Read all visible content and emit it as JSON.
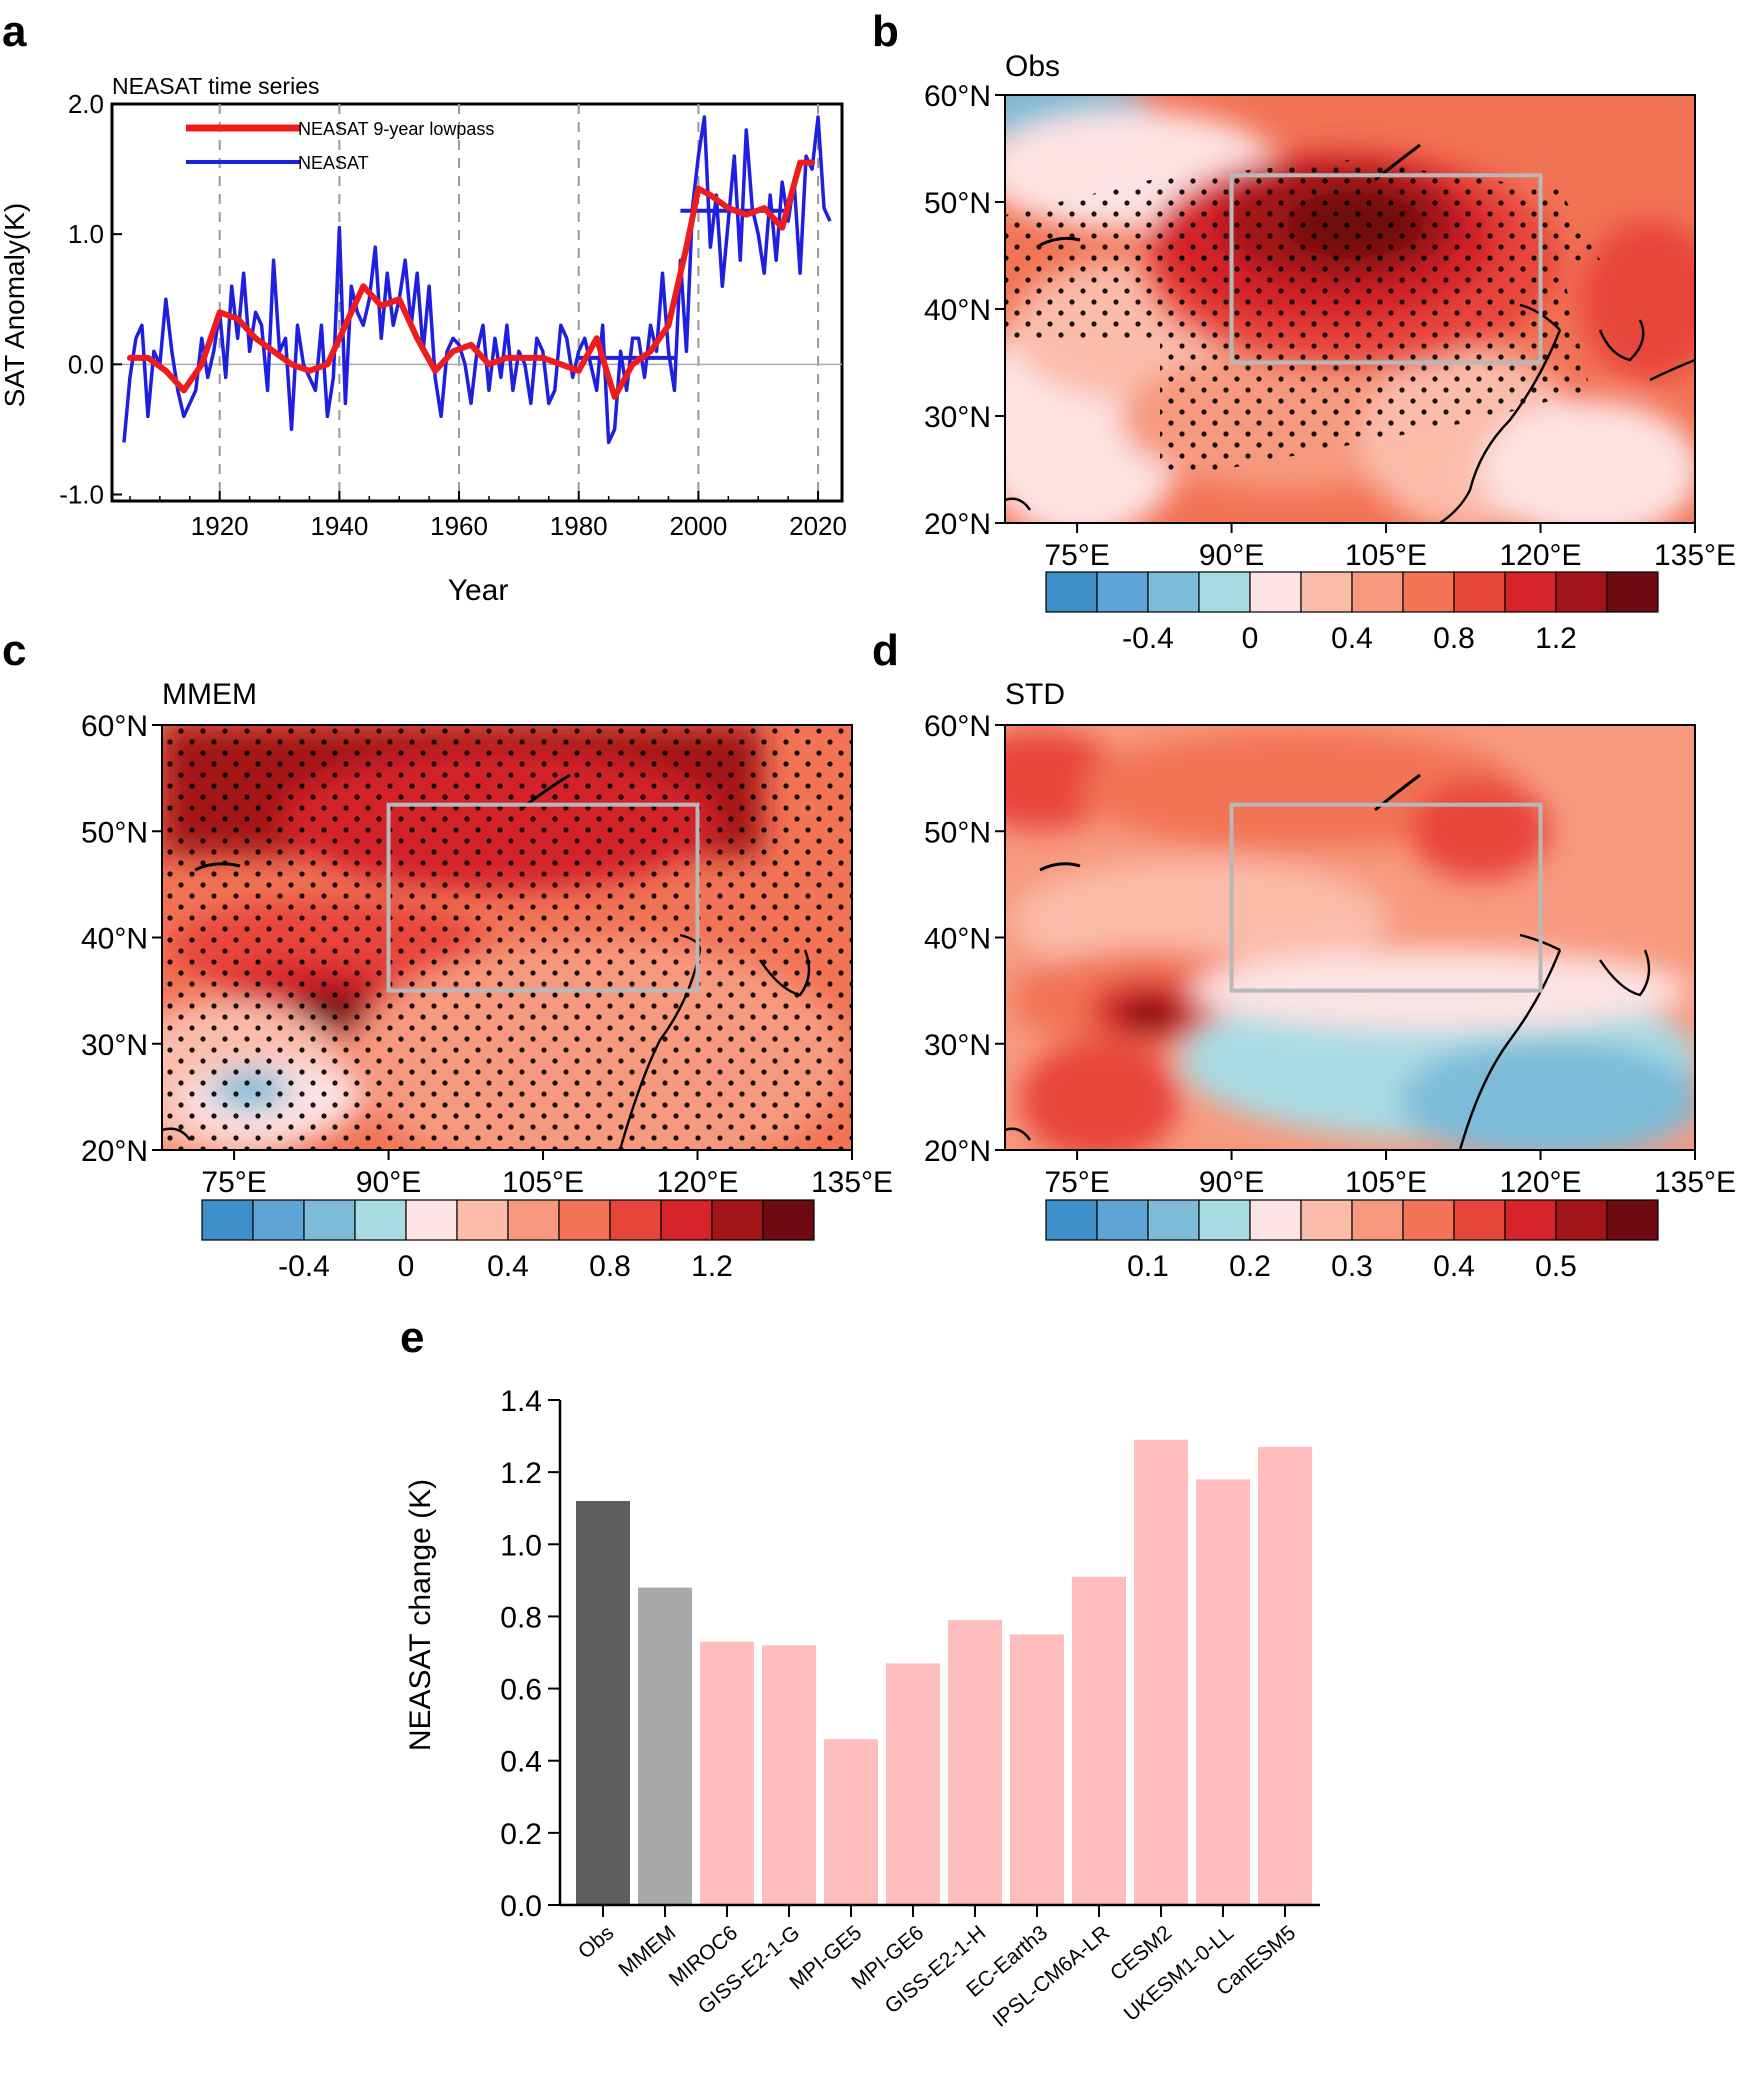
{
  "panel_labels": [
    "a",
    "b",
    "c",
    "d",
    "e"
  ],
  "colors": {
    "neasat_line": "#1f1fe0",
    "lowpass_line": "#ee1c1c",
    "obs_bar": "#5e5e5e",
    "mmem_bar": "#a9a9a9",
    "model_bar": "#ffbdbd",
    "box": "#b8b8b8",
    "div_scale": [
      "#3d8ec9",
      "#5ea4d4",
      "#7cbcd8",
      "#a9dbe3",
      "#fde3e3",
      "#fbbcaa",
      "#f7997e",
      "#f27355",
      "#e8453a",
      "#d42329",
      "#a31419",
      "#6f0a10"
    ]
  },
  "chart_data": [
    {
      "type": "line",
      "panel": "a",
      "title": "NEASAT time series",
      "xlabel": "Year",
      "ylabel": "SAT Anomaly(K)",
      "xlim": [
        1902,
        2024
      ],
      "ylim": [
        -1.05,
        2.0
      ],
      "xticks": [
        "1920",
        "1940",
        "1960",
        "1980",
        "2000",
        "2020"
      ],
      "yticks": [
        "-1.0",
        "0.0",
        "1.0",
        "2.0"
      ],
      "vlines": [
        1920,
        1940,
        1960,
        1980,
        2000,
        2020
      ],
      "series": [
        {
          "name": "NEASAT",
          "x": [
            1904,
            1905,
            1906,
            1907,
            1908,
            1909,
            1910,
            1911,
            1912,
            1913,
            1914,
            1915,
            1916,
            1917,
            1918,
            1919,
            1920,
            1921,
            1922,
            1923,
            1924,
            1925,
            1926,
            1927,
            1928,
            1929,
            1930,
            1931,
            1932,
            1933,
            1934,
            1935,
            1936,
            1937,
            1938,
            1939,
            1940,
            1941,
            1942,
            1943,
            1944,
            1945,
            1946,
            1947,
            1948,
            1949,
            1950,
            1951,
            1952,
            1953,
            1954,
            1955,
            1956,
            1957,
            1958,
            1959,
            1960,
            1961,
            1962,
            1963,
            1964,
            1965,
            1966,
            1967,
            1968,
            1969,
            1970,
            1971,
            1972,
            1973,
            1974,
            1975,
            1976,
            1977,
            1978,
            1979,
            1980,
            1981,
            1982,
            1983,
            1984,
            1985,
            1986,
            1987,
            1988,
            1989,
            1990,
            1991,
            1992,
            1993,
            1994,
            1995,
            1996,
            1997,
            1998,
            1999,
            2000,
            2001,
            2002,
            2003,
            2004,
            2005,
            2006,
            2007,
            2008,
            2009,
            2010,
            2011,
            2012,
            2013,
            2014,
            2015,
            2016,
            2017,
            2018,
            2019,
            2020,
            2021,
            2022
          ],
          "values": [
            -0.6,
            -0.1,
            0.2,
            0.3,
            -0.4,
            0.1,
            0.0,
            0.5,
            0.1,
            -0.2,
            -0.4,
            -0.3,
            -0.2,
            0.2,
            -0.1,
            0.1,
            0.4,
            -0.1,
            0.6,
            0.2,
            0.7,
            0.1,
            0.4,
            0.3,
            -0.2,
            0.8,
            0.1,
            0.2,
            -0.5,
            0.3,
            0.0,
            -0.1,
            -0.2,
            0.3,
            -0.4,
            -0.1,
            1.05,
            -0.3,
            0.6,
            0.4,
            0.3,
            0.5,
            0.9,
            0.2,
            0.7,
            0.3,
            0.5,
            0.8,
            0.3,
            0.7,
            0.1,
            0.6,
            -0.1,
            -0.4,
            0.1,
            0.2,
            0.15,
            0.0,
            -0.3,
            0.1,
            0.3,
            -0.2,
            0.2,
            -0.1,
            0.3,
            -0.2,
            0.1,
            0.0,
            -0.3,
            0.2,
            0.1,
            -0.3,
            -0.2,
            0.3,
            0.2,
            -0.1,
            0.1,
            0.2,
            0.0,
            -0.2,
            0.3,
            -0.6,
            -0.5,
            0.1,
            -0.2,
            0.2,
            0.2,
            -0.1,
            0.3,
            0.1,
            0.7,
            0.1,
            -0.2,
            0.8,
            0.1,
            1.2,
            1.6,
            1.9,
            0.9,
            1.3,
            0.6,
            1.1,
            1.6,
            0.8,
            1.8,
            1.2,
            1.0,
            0.7,
            1.3,
            0.8,
            1.4,
            1.1,
            1.4,
            0.7,
            1.6,
            1.5,
            1.9,
            1.2,
            1.1
          ]
        },
        {
          "name": "NEASAT 9-year lowpass",
          "x": [
            1905,
            1908,
            1911,
            1914,
            1917,
            1920,
            1923,
            1926,
            1929,
            1932,
            1935,
            1938,
            1941,
            1944,
            1947,
            1950,
            1953,
            1956,
            1959,
            1962,
            1965,
            1968,
            1971,
            1974,
            1977,
            1980,
            1983,
            1986,
            1989,
            1992,
            1995,
            1998,
            2000,
            2002,
            2005,
            2008,
            2011,
            2014,
            2017,
            2019
          ],
          "values": [
            0.05,
            0.05,
            -0.05,
            -0.2,
            0.0,
            0.4,
            0.35,
            0.2,
            0.1,
            0.0,
            -0.05,
            0.0,
            0.3,
            0.6,
            0.45,
            0.5,
            0.2,
            -0.05,
            0.1,
            0.15,
            0.0,
            0.05,
            0.05,
            0.05,
            0.0,
            -0.05,
            0.2,
            -0.25,
            0.0,
            0.1,
            0.3,
            0.9,
            1.35,
            1.3,
            1.2,
            1.15,
            1.2,
            1.05,
            1.55,
            1.55
          ]
        },
        {
          "name": "mean segments",
          "segments": [
            {
              "x": [
                1980,
                1996
              ],
              "value": 0.05
            },
            {
              "x": [
                1997,
                2015
              ],
              "value": 1.18
            }
          ]
        }
      ],
      "legend": [
        {
          "label": "NEASAT 9-year lowpass",
          "series": "NEASAT 9-year lowpass"
        },
        {
          "label": "NEASAT",
          "series": "NEASAT"
        }
      ],
      "legend_position": "top-left"
    },
    {
      "type": "heatmap",
      "panel": "b",
      "title": "Obs",
      "xticks": [
        "75°E",
        "90°E",
        "105°E",
        "120°E",
        "135°E"
      ],
      "yticks": [
        "60°N",
        "50°N",
        "40°N",
        "30°N",
        "20°N"
      ],
      "lon_range": [
        68,
        135
      ],
      "lat_range": [
        20,
        60
      ],
      "box": {
        "lon": [
          90,
          120
        ],
        "lat": [
          35,
          52.5
        ]
      },
      "colorbar_labels": [
        "-0.4",
        "0",
        "0.4",
        "0.8",
        "1.2"
      ]
    },
    {
      "type": "heatmap",
      "panel": "c",
      "title": "MMEM",
      "xticks": [
        "75°E",
        "90°E",
        "105°E",
        "120°E",
        "135°E"
      ],
      "yticks": [
        "60°N",
        "50°N",
        "40°N",
        "30°N",
        "20°N"
      ],
      "lon_range": [
        68,
        135
      ],
      "lat_range": [
        20,
        60
      ],
      "box": {
        "lon": [
          90,
          120
        ],
        "lat": [
          35,
          52.5
        ]
      },
      "colorbar_labels": [
        "-0.4",
        "0",
        "0.4",
        "0.8",
        "1.2"
      ]
    },
    {
      "type": "heatmap",
      "panel": "d",
      "title": "STD",
      "xticks": [
        "75°E",
        "90°E",
        "105°E",
        "120°E",
        "135°E"
      ],
      "yticks": [
        "60°N",
        "50°N",
        "40°N",
        "30°N",
        "20°N"
      ],
      "lon_range": [
        68,
        135
      ],
      "lat_range": [
        20,
        60
      ],
      "box": {
        "lon": [
          90,
          120
        ],
        "lat": [
          35,
          52.5
        ]
      },
      "colorbar_labels": [
        "0.1",
        "0.2",
        "0.3",
        "0.4",
        "0.5"
      ]
    },
    {
      "type": "bar",
      "panel": "e",
      "ylabel": "NEASAT change (K)",
      "ylim": [
        0,
        1.4
      ],
      "yticks": [
        "0.0",
        "0.2",
        "0.4",
        "0.6",
        "0.8",
        "1.0",
        "1.2",
        "1.4"
      ],
      "categories": [
        "Obs",
        "MMEM",
        "MIROC6",
        "GISS-E2-1-G",
        "MPI-GE5",
        "MPI-GE6",
        "GISS-E2-1-H",
        "EC-Earth3",
        "IPSL-CM6A-LR",
        "CESM2",
        "UKESM1-0-LL",
        "CanESM5"
      ],
      "values": [
        1.12,
        0.88,
        0.73,
        0.72,
        0.46,
        0.67,
        0.79,
        0.75,
        0.91,
        1.29,
        1.18,
        1.27
      ]
    }
  ]
}
